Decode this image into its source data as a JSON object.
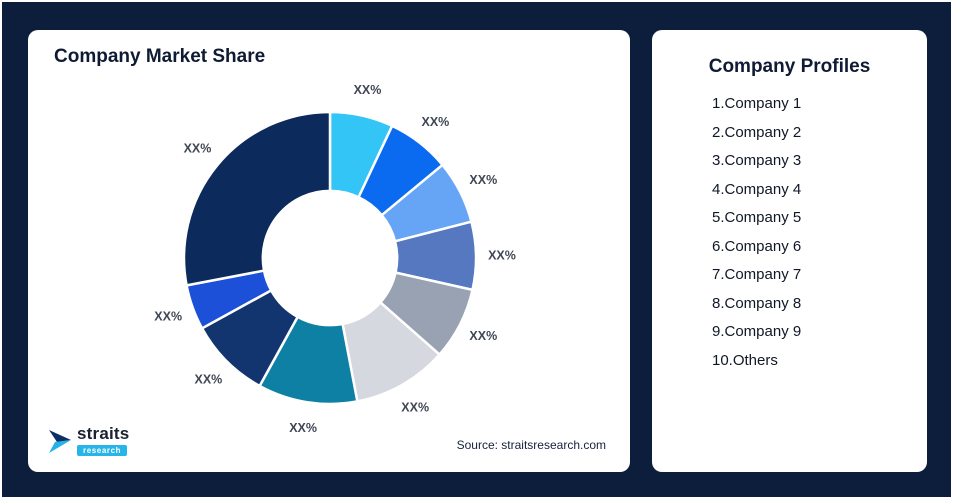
{
  "page": {
    "background": "#0d1e3c"
  },
  "market_share_card": {
    "title": "Company Market Share",
    "source": "Source: straitsresearch.com",
    "logo": {
      "name": "straits",
      "sub": "research"
    }
  },
  "profiles_card": {
    "title": "Company Profiles",
    "items": [
      "1.Company 1",
      "2.Company 2",
      "3.Company 3",
      "4.Company 4",
      "5.Company 5",
      "6.Company 6",
      "7.Company 7",
      "8.Company 8",
      "9.Company 9",
      "10.Others"
    ]
  },
  "chart_data": {
    "type": "pie",
    "subtype": "donut",
    "title": "Company Market Share",
    "source": "Source: straitsresearch.com",
    "direction": "clockwise",
    "start_angle_deg": 0,
    "inner_radius_ratio": 0.46,
    "legend": "none",
    "label_color": "#3f4654",
    "slices": [
      {
        "name": "slice-1",
        "label": "XX%",
        "color": "#33c5f6",
        "approx_pct": 7
      },
      {
        "name": "slice-2",
        "label": "XX%",
        "color": "#0b6bf0",
        "approx_pct": 7
      },
      {
        "name": "slice-3",
        "label": "XX%",
        "color": "#66a5f6",
        "approx_pct": 7
      },
      {
        "name": "slice-4",
        "label": "XX%",
        "color": "#5578c1",
        "approx_pct": 7.5
      },
      {
        "name": "slice-5",
        "label": "XX%",
        "color": "#98a2b3",
        "approx_pct": 8
      },
      {
        "name": "slice-6",
        "label": "XX%",
        "color": "#d5d9df",
        "approx_pct": 10.5
      },
      {
        "name": "slice-7",
        "label": "XX%",
        "color": "#0e80a3",
        "approx_pct": 11
      },
      {
        "name": "slice-8",
        "label": "XX%",
        "color": "#12356f",
        "approx_pct": 9
      },
      {
        "name": "slice-9",
        "label": "XX%",
        "color": "#1d50d8",
        "approx_pct": 5
      },
      {
        "name": "slice-10",
        "label": "XX%",
        "color": "#0c2a5b",
        "approx_pct": 28
      }
    ]
  }
}
